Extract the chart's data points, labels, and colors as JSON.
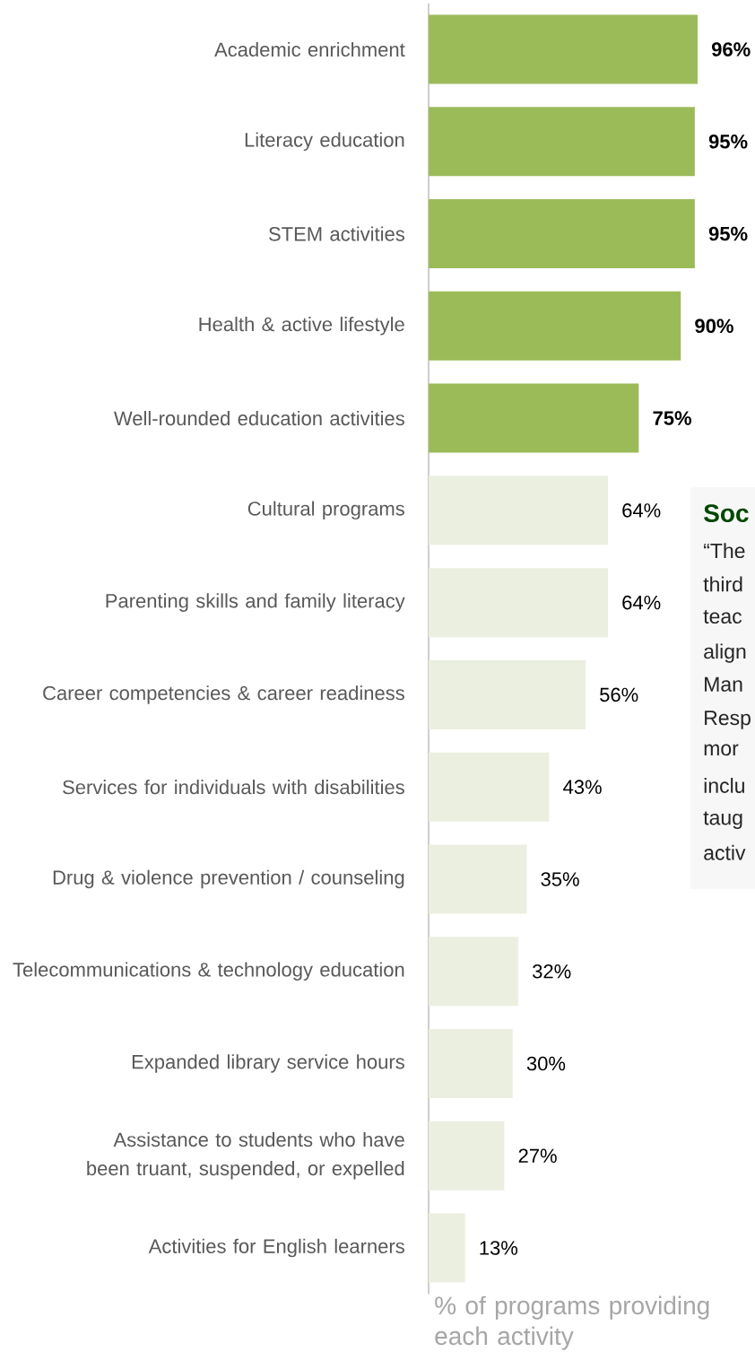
{
  "chart_data": {
    "type": "bar",
    "orientation": "horizontal",
    "xlabel": "% of programs providing each activity",
    "categories": [
      "Academic enrichment",
      "Literacy education",
      "STEM activities",
      "Health & active lifestyle",
      "Well-rounded education activities",
      "Cultural programs",
      "Parenting skills and family literacy",
      "Career competencies & career readiness",
      "Services for individuals with disabilities",
      "Drug & violence prevention / counseling",
      "Telecommunications & technology education",
      "Expanded library service hours",
      "Assistance to students who have been truant, suspended, or expelled",
      "Activities for English learners"
    ],
    "values": [
      96,
      95,
      95,
      90,
      75,
      64,
      64,
      56,
      43,
      35,
      32,
      30,
      27,
      13
    ],
    "colors": [
      "#9bbb59",
      "#9bbb59",
      "#9bbb59",
      "#9bbb59",
      "#9bbb59",
      "#ebefdf",
      "#ebefdf",
      "#ebefdf",
      "#ebefdf",
      "#ebefdf",
      "#ebefdf",
      "#ebefdf",
      "#ebefdf",
      "#ebefdf"
    ],
    "value_labels": [
      "96%",
      "95%",
      "95%",
      "90%",
      "75%",
      "64%",
      "64%",
      "56%",
      "43%",
      "35%",
      "32%",
      "30%",
      "27%",
      "13%"
    ],
    "annotations": [
      "Soc",
      "“The",
      "third",
      "teac",
      "align",
      "Man",
      "Resp",
      "mor",
      "inclu",
      "taug",
      "activ"
    ]
  }
}
